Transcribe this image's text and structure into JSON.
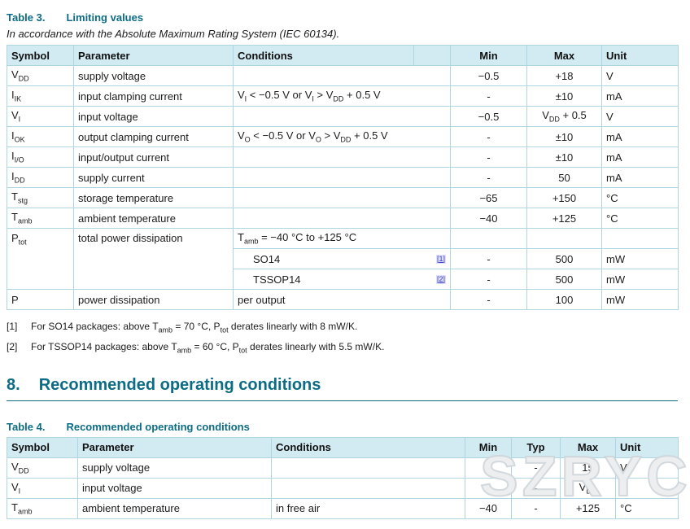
{
  "colors": {
    "teal": "#0c6c85",
    "header_bg": "#d2eaf2",
    "border": "#aed6e2",
    "link_blue": "#3939d0"
  },
  "table3_caption": {
    "label": "Table 3.",
    "title": "Limiting values"
  },
  "table3_subtitle": "In accordance with the Absolute Maximum Rating System (IEC 60134).",
  "table3": {
    "headers": {
      "symbol": "Symbol",
      "parameter": "Parameter",
      "conditions": "Conditions",
      "min": "Min",
      "max": "Max",
      "unit": "Unit"
    },
    "rows": [
      {
        "symbol": "V~DD~",
        "parameter": "supply voltage",
        "conditions": "",
        "ref": "",
        "min": "−0.5",
        "max": "+18",
        "unit": "V"
      },
      {
        "symbol": "I~IK~",
        "parameter": "input clamping current",
        "conditions": "V~I~ < −0.5 V or V~I~ > V~DD~ + 0.5 V",
        "ref": "",
        "min": "-",
        "max": "±10",
        "unit": "mA"
      },
      {
        "symbol": "V~I~",
        "parameter": "input voltage",
        "conditions": "",
        "ref": "",
        "min": "−0.5",
        "max": "V~DD~ + 0.5",
        "unit": "V"
      },
      {
        "symbol": "I~OK~",
        "parameter": "output clamping current",
        "conditions": "V~O~ < −0.5 V or V~O~ > V~DD~ + 0.5 V",
        "ref": "",
        "min": "-",
        "max": "±10",
        "unit": "mA"
      },
      {
        "symbol": "I~I/O~",
        "parameter": "input/output current",
        "conditions": "",
        "ref": "",
        "min": "-",
        "max": "±10",
        "unit": "mA"
      },
      {
        "symbol": "I~DD~",
        "parameter": "supply current",
        "conditions": "",
        "ref": "",
        "min": "-",
        "max": "50",
        "unit": "mA"
      },
      {
        "symbol": "T~stg~",
        "parameter": "storage temperature",
        "conditions": "",
        "ref": "",
        "min": "−65",
        "max": "+150",
        "unit": "°C"
      },
      {
        "symbol": "T~amb~",
        "parameter": "ambient temperature",
        "conditions": "",
        "ref": "",
        "min": "−40",
        "max": "+125",
        "unit": "°C"
      },
      {
        "symbol": "P~tot~",
        "parameter": "total power dissipation",
        "conditions": "T~amb~ = −40 °C to +125 °C",
        "ref": "",
        "min": "",
        "max": "",
        "unit": ""
      },
      {
        "symbol": "",
        "parameter": "",
        "conditions": "SO14",
        "ref": "[1]",
        "min": "-",
        "max": "500",
        "unit": "mW"
      },
      {
        "symbol": "",
        "parameter": "",
        "conditions": "TSSOP14",
        "ref": "[2]",
        "min": "-",
        "max": "500",
        "unit": "mW"
      },
      {
        "symbol": "P",
        "parameter": "power dissipation",
        "conditions": "per output",
        "ref": "",
        "min": "-",
        "max": "100",
        "unit": "mW"
      }
    ]
  },
  "footnotes": [
    {
      "ref": "[1]",
      "text": "For SO14 packages: above T~amb~ = 70 °C, P~tot~ derates linearly with 8 mW/K."
    },
    {
      "ref": "[2]",
      "text": "For TSSOP14 packages: above T~amb~ = 60 °C, P~tot~ derates linearly with 5.5 mW/K."
    }
  ],
  "section": {
    "number": "8.",
    "title": "Recommended operating conditions"
  },
  "table4_caption": {
    "label": "Table 4.",
    "title": "Recommended operating conditions"
  },
  "table4": {
    "headers": {
      "symbol": "Symbol",
      "parameter": "Parameter",
      "conditions": "Conditions",
      "min": "Min",
      "typ": "Typ",
      "max": "Max",
      "unit": "Unit"
    },
    "rows": [
      {
        "symbol": "V~DD~",
        "parameter": "supply voltage",
        "conditions": "",
        "min": "3",
        "typ": "-",
        "max": "15",
        "unit": "V"
      },
      {
        "symbol": "V~I~",
        "parameter": "input voltage",
        "conditions": "",
        "min": "0",
        "typ": "-",
        "max": "V~DD~",
        "unit": "V"
      },
      {
        "symbol": "T~amb~",
        "parameter": "ambient temperature",
        "conditions": "in free air",
        "min": "−40",
        "typ": "-",
        "max": "+125",
        "unit": "°C"
      }
    ]
  },
  "watermark": "SZRYC"
}
